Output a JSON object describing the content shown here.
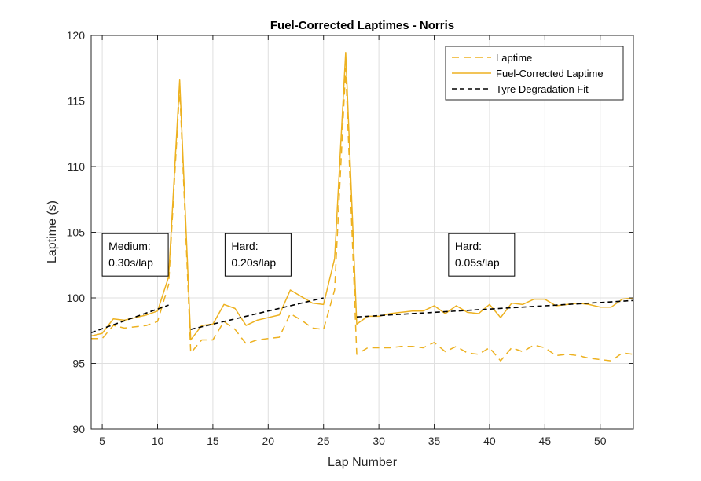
{
  "chart_data": {
    "type": "line",
    "title": "Fuel-Corrected Laptimes - Norris",
    "xlabel": "Lap Number",
    "ylabel": "Laptime (s)",
    "xlim": [
      4,
      53
    ],
    "ylim": [
      90,
      120
    ],
    "xticks": [
      5,
      10,
      15,
      20,
      25,
      30,
      35,
      40,
      45,
      50
    ],
    "yticks": [
      90,
      95,
      100,
      105,
      110,
      115,
      120
    ],
    "grid": true,
    "legend_position": "top-right",
    "series": [
      {
        "name": "Laptime",
        "style": "dashed",
        "color": "#EDB120",
        "x": [
          4,
          5,
          6,
          7,
          8,
          9,
          10,
          11,
          12,
          13,
          14,
          15,
          16,
          17,
          18,
          19,
          20,
          21,
          22,
          23,
          24,
          25,
          26,
          27,
          28,
          29,
          30,
          31,
          32,
          33,
          34,
          35,
          36,
          37,
          38,
          39,
          40,
          41,
          42,
          43,
          44,
          45,
          46,
          47,
          48,
          49,
          50,
          51,
          52,
          53
        ],
        "y": [
          96.9,
          96.9,
          97.9,
          97.7,
          97.8,
          97.9,
          98.2,
          101.0,
          116.0,
          95.8,
          96.8,
          96.8,
          98.2,
          97.6,
          96.5,
          96.8,
          96.9,
          97.0,
          98.8,
          98.3,
          97.7,
          97.6,
          100.6,
          117.5,
          95.7,
          96.2,
          96.2,
          96.2,
          96.3,
          96.3,
          96.2,
          96.6,
          95.9,
          96.3,
          95.8,
          95.7,
          96.2,
          95.2,
          96.2,
          95.9,
          96.4,
          96.2,
          95.6,
          95.7,
          95.6,
          95.4,
          95.3,
          95.2,
          95.8,
          95.7
        ]
      },
      {
        "name": "Fuel-Corrected Laptime",
        "style": "solid",
        "color": "#EDB120",
        "x": [
          4,
          5,
          6,
          7,
          8,
          9,
          10,
          11,
          12,
          13,
          14,
          15,
          16,
          17,
          18,
          19,
          20,
          21,
          22,
          23,
          24,
          25,
          26,
          27,
          28,
          29,
          30,
          31,
          32,
          33,
          34,
          35,
          36,
          37,
          38,
          39,
          40,
          41,
          42,
          43,
          44,
          45,
          46,
          47,
          48,
          49,
          50,
          51,
          52,
          53
        ],
        "y": [
          97.1,
          97.3,
          98.4,
          98.3,
          98.5,
          98.7,
          99.0,
          101.6,
          116.6,
          96.8,
          97.9,
          98.0,
          99.5,
          99.2,
          97.9,
          98.3,
          98.5,
          98.7,
          100.6,
          100.1,
          99.6,
          99.5,
          103.0,
          118.7,
          98.0,
          98.6,
          98.6,
          98.8,
          98.9,
          99.0,
          99.0,
          99.4,
          98.8,
          99.4,
          98.9,
          98.8,
          99.5,
          98.5,
          99.6,
          99.5,
          99.9,
          99.9,
          99.4,
          99.5,
          99.6,
          99.5,
          99.3,
          99.3,
          99.9,
          100.0
        ]
      },
      {
        "name": "Tyre Degradation Fit",
        "style": "dashed",
        "color": "#000000",
        "segments": [
          {
            "x": [
              4,
              11
            ],
            "y": [
              97.35,
              99.45
            ]
          },
          {
            "x": [
              13,
              25
            ],
            "y": [
              97.6,
              100.0
            ]
          },
          {
            "x": [
              28,
              53
            ],
            "y": [
              98.55,
              99.8
            ]
          }
        ]
      }
    ],
    "annotations": [
      {
        "lines": [
          "Medium:",
          "0.30s/lap"
        ],
        "x": 5,
        "y": 104.9
      },
      {
        "lines": [
          "Hard:",
          "0.20s/lap"
        ],
        "x": 16.1,
        "y": 104.9
      },
      {
        "lines": [
          "Hard:",
          "0.05s/lap"
        ],
        "x": 36.3,
        "y": 104.9
      }
    ]
  }
}
